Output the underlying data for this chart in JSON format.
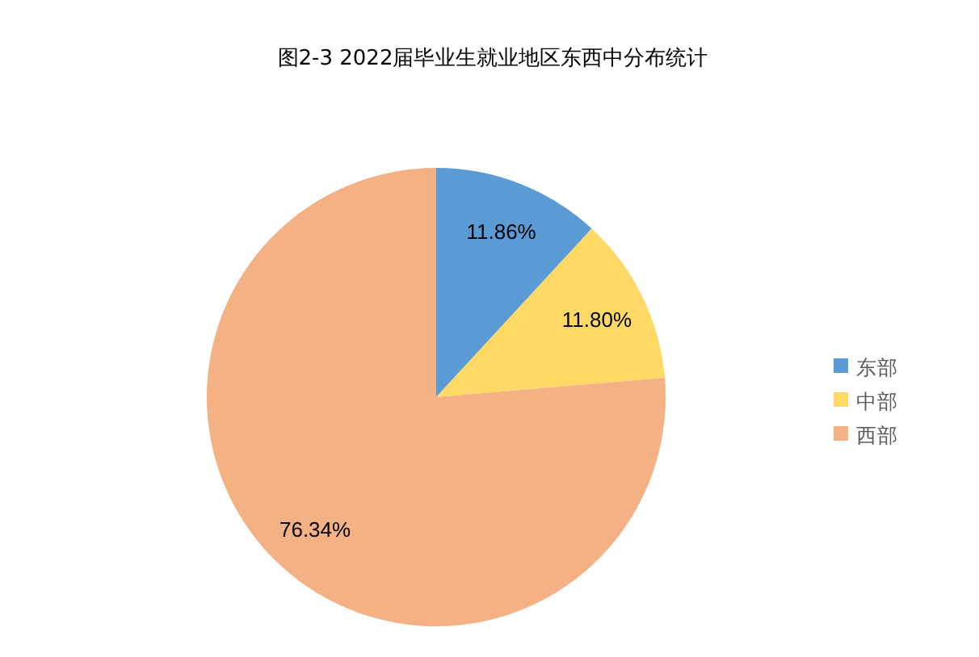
{
  "chart_data": {
    "type": "pie",
    "title": "图2-3 2022届毕业生就业地区东西中分布统计",
    "categories": [
      "东部",
      "中部",
      "西部"
    ],
    "values": [
      11.86,
      11.8,
      76.34
    ],
    "value_labels": [
      "11.86%",
      "11.80%",
      "76.34%"
    ],
    "colors": [
      "#5b9bd5",
      "#ffd966",
      "#f4b183"
    ],
    "legend": "right"
  }
}
